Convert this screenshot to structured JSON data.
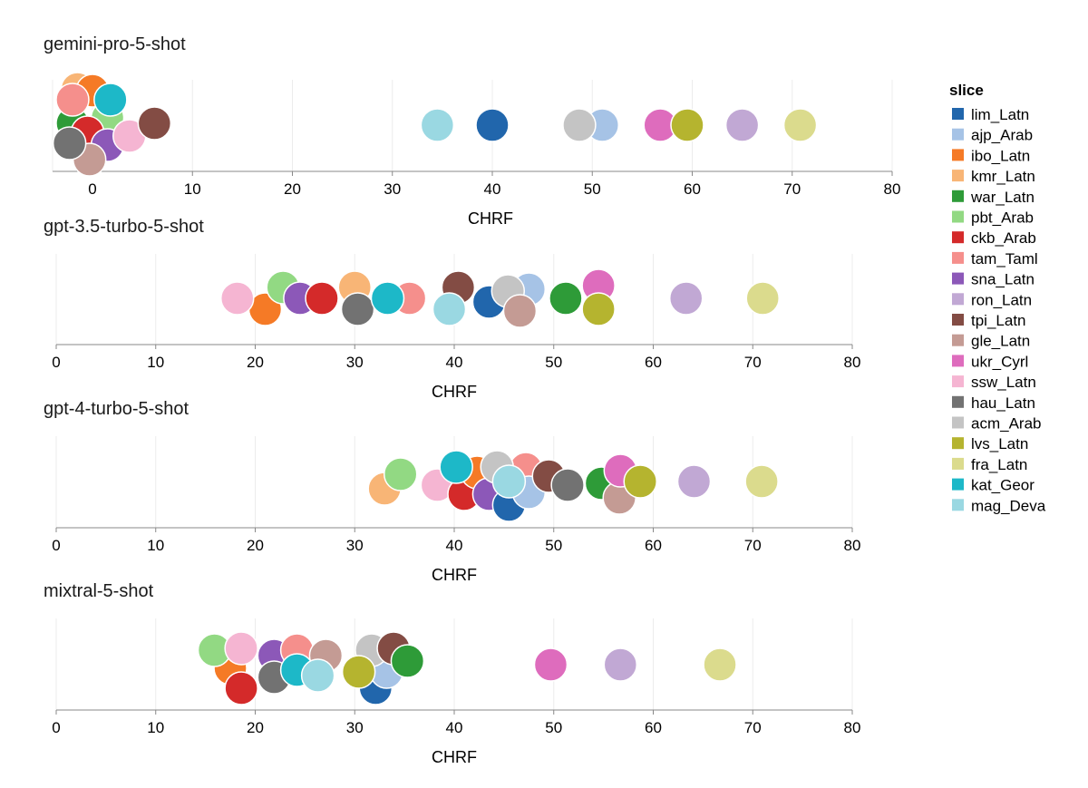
{
  "chart_data": {
    "type": "scatter",
    "xlabel": "CHRF",
    "xlim": [
      0,
      80
    ],
    "ticks": [
      0,
      10,
      20,
      30,
      40,
      50,
      60,
      70,
      80
    ],
    "grid": true,
    "legend": {
      "title": "slice",
      "placement": "right",
      "entries": [
        {
          "name": "lim_Latn",
          "color": "#2166ac"
        },
        {
          "name": "ajp_Arab",
          "color": "#a6c3e6"
        },
        {
          "name": "ibo_Latn",
          "color": "#f57a26"
        },
        {
          "name": "kmr_Latn",
          "color": "#f8b576"
        },
        {
          "name": "war_Latn",
          "color": "#2e9b38"
        },
        {
          "name": "pbt_Arab",
          "color": "#92d983"
        },
        {
          "name": "ckb_Arab",
          "color": "#d42a2a"
        },
        {
          "name": "tam_Taml",
          "color": "#f58f8c"
        },
        {
          "name": "sna_Latn",
          "color": "#8c58b8"
        },
        {
          "name": "ron_Latn",
          "color": "#c1a8d4"
        },
        {
          "name": "tpi_Latn",
          "color": "#834c44"
        },
        {
          "name": "gle_Latn",
          "color": "#c49b94"
        },
        {
          "name": "ukr_Cyrl",
          "color": "#de6cbd"
        },
        {
          "name": "ssw_Latn",
          "color": "#f5b5d2"
        },
        {
          "name": "hau_Latn",
          "color": "#727272"
        },
        {
          "name": "acm_Arab",
          "color": "#c4c4c4"
        },
        {
          "name": "lvs_Latn",
          "color": "#b5b42f"
        },
        {
          "name": "fra_Latn",
          "color": "#dbdb8d"
        },
        {
          "name": "kat_Geor",
          "color": "#1db8c8"
        },
        {
          "name": "mag_Deva",
          "color": "#9ad8e2"
        }
      ]
    },
    "panels": [
      {
        "title": "gemini-pro-5-shot",
        "points": [
          {
            "slice": "kmr_Latn",
            "x": -1.5
          },
          {
            "slice": "ibo_Latn",
            "x": 0
          },
          {
            "slice": "war_Latn",
            "x": -2
          },
          {
            "slice": "pbt_Arab",
            "x": 1.5
          },
          {
            "slice": "ckb_Arab",
            "x": -0.5
          },
          {
            "slice": "sna_Latn",
            "x": 1.5
          },
          {
            "slice": "tam_Taml",
            "x": -2
          },
          {
            "slice": "kat_Geor",
            "x": 1.8
          },
          {
            "slice": "gle_Latn",
            "x": -0.3
          },
          {
            "slice": "hau_Latn",
            "x": -2.3
          },
          {
            "slice": "ssw_Latn",
            "x": 3.7
          },
          {
            "slice": "tpi_Latn",
            "x": 6.2
          },
          {
            "slice": "mag_Deva",
            "x": 34.5
          },
          {
            "slice": "lim_Latn",
            "x": 40
          },
          {
            "slice": "ajp_Arab",
            "x": 51
          },
          {
            "slice": "acm_Arab",
            "x": 48.7
          },
          {
            "slice": "ukr_Cyrl",
            "x": 56.8
          },
          {
            "slice": "lvs_Latn",
            "x": 59.5
          },
          {
            "slice": "ron_Latn",
            "x": 65
          },
          {
            "slice": "fra_Latn",
            "x": 70.8
          }
        ]
      },
      {
        "title": "gpt-3.5-turbo-5-shot",
        "points": [
          {
            "slice": "ibo_Latn",
            "x": 21
          },
          {
            "slice": "pbt_Arab",
            "x": 22.8
          },
          {
            "slice": "ssw_Latn",
            "x": 18.2
          },
          {
            "slice": "sna_Latn",
            "x": 24.5
          },
          {
            "slice": "ckb_Arab",
            "x": 26.7
          },
          {
            "slice": "kmr_Latn",
            "x": 30
          },
          {
            "slice": "hau_Latn",
            "x": 30.3
          },
          {
            "slice": "tam_Taml",
            "x": 35.5
          },
          {
            "slice": "kat_Geor",
            "x": 33.3
          },
          {
            "slice": "tpi_Latn",
            "x": 40.4
          },
          {
            "slice": "mag_Deva",
            "x": 39.5
          },
          {
            "slice": "lim_Latn",
            "x": 43.5
          },
          {
            "slice": "ajp_Arab",
            "x": 47.5
          },
          {
            "slice": "acm_Arab",
            "x": 45.4
          },
          {
            "slice": "gle_Latn",
            "x": 46.6
          },
          {
            "slice": "war_Latn",
            "x": 51.2
          },
          {
            "slice": "ukr_Cyrl",
            "x": 54.5
          },
          {
            "slice": "lvs_Latn",
            "x": 54.5
          },
          {
            "slice": "ron_Latn",
            "x": 63.3
          },
          {
            "slice": "fra_Latn",
            "x": 71
          }
        ]
      },
      {
        "title": "gpt-4-turbo-5-shot",
        "points": [
          {
            "slice": "kmr_Latn",
            "x": 33
          },
          {
            "slice": "pbt_Arab",
            "x": 34.6
          },
          {
            "slice": "ssw_Latn",
            "x": 38.3
          },
          {
            "slice": "ckb_Arab",
            "x": 41
          },
          {
            "slice": "ibo_Latn",
            "x": 42.3
          },
          {
            "slice": "kat_Geor",
            "x": 40.2
          },
          {
            "slice": "sna_Latn",
            "x": 43.5
          },
          {
            "slice": "tam_Taml",
            "x": 47.2
          },
          {
            "slice": "acm_Arab",
            "x": 44.3
          },
          {
            "slice": "lim_Latn",
            "x": 45.5
          },
          {
            "slice": "ajp_Arab",
            "x": 47.5
          },
          {
            "slice": "mag_Deva",
            "x": 45.5
          },
          {
            "slice": "tpi_Latn",
            "x": 49.5
          },
          {
            "slice": "hau_Latn",
            "x": 51.4
          },
          {
            "slice": "war_Latn",
            "x": 54.8
          },
          {
            "slice": "gle_Latn",
            "x": 56.6
          },
          {
            "slice": "ukr_Cyrl",
            "x": 56.7
          },
          {
            "slice": "lvs_Latn",
            "x": 58.7
          },
          {
            "slice": "ron_Latn",
            "x": 64.1
          },
          {
            "slice": "fra_Latn",
            "x": 70.9
          }
        ]
      },
      {
        "title": "mixtral-5-shot",
        "points": [
          {
            "slice": "ibo_Latn",
            "x": 17.5
          },
          {
            "slice": "pbt_Arab",
            "x": 15.9
          },
          {
            "slice": "ssw_Latn",
            "x": 18.6
          },
          {
            "slice": "ckb_Arab",
            "x": 18.6
          },
          {
            "slice": "sna_Latn",
            "x": 21.9
          },
          {
            "slice": "tam_Taml",
            "x": 24.2
          },
          {
            "slice": "hau_Latn",
            "x": 21.9
          },
          {
            "slice": "kat_Geor",
            "x": 24.2
          },
          {
            "slice": "gle_Latn",
            "x": 27.1
          },
          {
            "slice": "mag_Deva",
            "x": 26.3
          },
          {
            "slice": "lim_Latn",
            "x": 32.1
          },
          {
            "slice": "ajp_Arab",
            "x": 33.2
          },
          {
            "slice": "acm_Arab",
            "x": 31.7
          },
          {
            "slice": "lvs_Latn",
            "x": 30.4
          },
          {
            "slice": "tpi_Latn",
            "x": 33.9
          },
          {
            "slice": "war_Latn",
            "x": 35.3
          },
          {
            "slice": "ukr_Cyrl",
            "x": 49.7
          },
          {
            "slice": "ron_Latn",
            "x": 56.7
          },
          {
            "slice": "fra_Latn",
            "x": 66.7
          }
        ]
      }
    ]
  }
}
